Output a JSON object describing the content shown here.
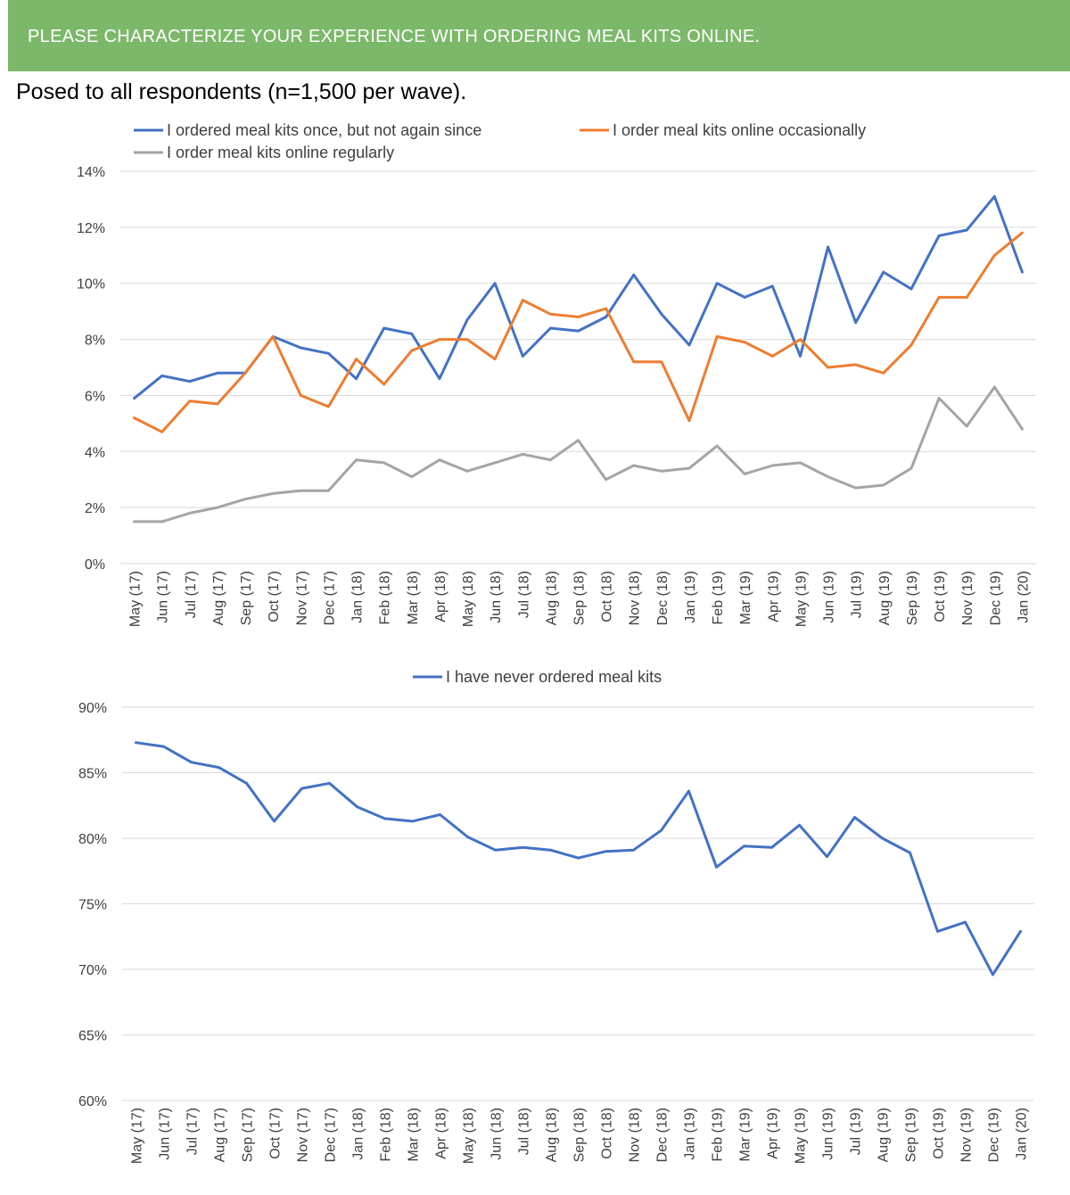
{
  "header": {
    "title": "PLEASE CHARACTERIZE YOUR EXPERIENCE WITH ORDERING MEAL KITS ONLINE.",
    "subtitle": "Posed to all respondents (n=1,500 per wave)."
  },
  "colors": {
    "banner": "#7cb86a",
    "blue": "#4472c4",
    "orange": "#ed7d31",
    "gray": "#a5a5a5"
  },
  "chart_data": [
    {
      "type": "line",
      "categories": [
        "May (17)",
        "Jun (17)",
        "Jul (17)",
        "Aug (17)",
        "Sep (17)",
        "Oct (17)",
        "Nov (17)",
        "Dec (17)",
        "Jan (18)",
        "Feb (18)",
        "Mar (18)",
        "Apr (18)",
        "May (18)",
        "Jun (18)",
        "Jul (18)",
        "Aug (18)",
        "Sep (18)",
        "Oct (18)",
        "Nov (18)",
        "Dec (18)",
        "Jan (19)",
        "Feb (19)",
        "Mar (19)",
        "Apr (19)",
        "May (19)",
        "Jun (19)",
        "Jul (19)",
        "Aug (19)",
        "Sep (19)",
        "Oct (19)",
        "Nov (19)",
        "Dec (19)",
        "Jan (20)"
      ],
      "series": [
        {
          "name": "I ordered meal kits once, but not again since",
          "color": "#4472c4",
          "values": [
            5.9,
            6.7,
            6.5,
            6.8,
            6.8,
            8.1,
            7.7,
            7.5,
            6.6,
            8.4,
            8.2,
            6.6,
            8.7,
            10.0,
            7.4,
            8.4,
            8.3,
            8.8,
            10.3,
            8.9,
            7.8,
            10.0,
            9.5,
            9.9,
            7.4,
            11.3,
            8.6,
            10.4,
            9.8,
            11.7,
            11.9,
            13.1,
            10.4
          ]
        },
        {
          "name": "I order meal kits online occasionally",
          "color": "#ed7d31",
          "values": [
            5.2,
            4.7,
            5.8,
            5.7,
            6.8,
            8.1,
            6.0,
            5.6,
            7.3,
            6.4,
            7.6,
            8.0,
            8.0,
            7.3,
            9.4,
            8.9,
            8.8,
            9.1,
            7.2,
            7.2,
            5.1,
            8.1,
            7.9,
            7.4,
            8.0,
            7.0,
            7.1,
            6.8,
            7.8,
            9.5,
            9.5,
            11.0,
            11.8
          ]
        },
        {
          "name": "I order meal kits online regularly",
          "color": "#a5a5a5",
          "values": [
            1.5,
            1.5,
            1.8,
            2.0,
            2.3,
            2.5,
            2.6,
            2.6,
            3.7,
            3.6,
            3.1,
            3.7,
            3.3,
            3.6,
            3.9,
            3.7,
            4.4,
            3.0,
            3.5,
            3.3,
            3.4,
            4.2,
            3.2,
            3.5,
            3.6,
            3.1,
            2.7,
            2.8,
            3.4,
            5.9,
            4.9,
            6.3,
            4.8
          ]
        }
      ],
      "yticks": [
        "0%",
        "2%",
        "4%",
        "6%",
        "8%",
        "10%",
        "12%",
        "14%"
      ],
      "ylim": [
        0,
        14
      ],
      "grid": true,
      "legend": "top"
    },
    {
      "type": "line",
      "categories": [
        "May (17)",
        "Jun (17)",
        "Jul (17)",
        "Aug (17)",
        "Sep (17)",
        "Oct (17)",
        "Nov (17)",
        "Dec (17)",
        "Jan (18)",
        "Feb (18)",
        "Mar (18)",
        "Apr (18)",
        "May (18)",
        "Jun (18)",
        "Jul (18)",
        "Aug (18)",
        "Sep (18)",
        "Oct (18)",
        "Nov (18)",
        "Dec (18)",
        "Jan (19)",
        "Feb (19)",
        "Mar (19)",
        "Apr (19)",
        "May (19)",
        "Jun (19)",
        "Jul (19)",
        "Aug (19)",
        "Sep (19)",
        "Oct (19)",
        "Nov (19)",
        "Dec (19)",
        "Jan (20)"
      ],
      "series": [
        {
          "name": "I have never ordered meal kits",
          "color": "#4472c4",
          "values": [
            87.3,
            87.0,
            85.8,
            85.4,
            84.2,
            81.3,
            83.8,
            84.2,
            82.4,
            81.5,
            81.3,
            81.8,
            80.1,
            79.1,
            79.3,
            79.1,
            78.5,
            79.0,
            79.1,
            80.6,
            83.6,
            77.8,
            79.4,
            79.3,
            81.0,
            78.6,
            81.6,
            80.0,
            78.9,
            72.9,
            73.6,
            69.6,
            72.9
          ]
        }
      ],
      "yticks": [
        "60%",
        "65%",
        "70%",
        "75%",
        "80%",
        "85%",
        "90%"
      ],
      "ylim": [
        60,
        90
      ],
      "grid": true,
      "legend": "top"
    }
  ]
}
